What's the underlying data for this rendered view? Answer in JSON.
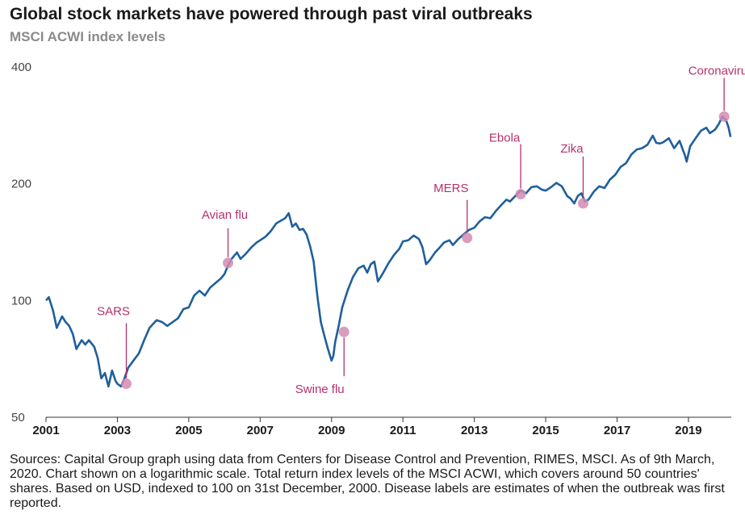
{
  "title": "Global stock markets have powered through past viral outbreaks",
  "subtitle": "MSCI ACWI index levels",
  "source": "Sources: Capital Group graph using data from Centers for Disease Control and Prevention, RIMES, MSCI. As of 9th March, 2020. Chart shown on a logarithmic scale. Total return index levels of the MSCI ACWI, which covers around 50 countries' shares. Based on USD, indexed to 100 on 31st December, 2000. Disease labels are estimates of when the outbreak was first reported.",
  "colors": {
    "line": "#1f5f9c",
    "annotation": "#b5306e",
    "marker": "#d48bb1"
  },
  "chart_data": {
    "type": "line",
    "title": "Global stock markets have powered through past viral outbreaks",
    "subtitle": "MSCI ACWI index levels",
    "y_scale": "log",
    "ylim": [
      50,
      400
    ],
    "yticks": [
      50,
      100,
      200,
      400
    ],
    "ytick_labels": [
      "50",
      "100",
      "200",
      "400"
    ],
    "xlim": [
      2001,
      2020.2
    ],
    "xticks": [
      2001,
      2003,
      2005,
      2007,
      2009,
      2011,
      2013,
      2015,
      2017,
      2019
    ],
    "xtick_labels": [
      "2001",
      "2003",
      "2005",
      "2007",
      "2009",
      "2011",
      "2013",
      "2015",
      "2017",
      "2019"
    ],
    "grid": false,
    "legend": "none",
    "series": [
      {
        "x": [
          2001.0,
          2001.08,
          2001.2,
          2001.3,
          2001.45,
          2001.55,
          2001.65,
          2001.75,
          2001.85,
          2002.0,
          2002.1,
          2002.2,
          2002.35,
          2002.45,
          2002.55,
          2002.65,
          2002.75,
          2002.85,
          2002.95,
          2003.0,
          2003.1,
          2003.2,
          2003.3,
          2003.45,
          2003.6,
          2003.75,
          2003.9,
          2004.0,
          2004.1,
          2004.25,
          2004.4,
          2004.55,
          2004.7,
          2004.85,
          2005.0,
          2005.15,
          2005.3,
          2005.45,
          2005.6,
          2005.75,
          2005.9,
          2006.0,
          2006.1,
          2006.2,
          2006.35,
          2006.45,
          2006.6,
          2006.75,
          2006.9,
          2007.0,
          2007.15,
          2007.3,
          2007.45,
          2007.55,
          2007.7,
          2007.8,
          2007.9,
          2008.0,
          2008.1,
          2008.2,
          2008.3,
          2008.4,
          2008.5,
          2008.6,
          2008.7,
          2008.8,
          2008.9,
          2009.0,
          2009.05,
          2009.1,
          2009.2,
          2009.3,
          2009.45,
          2009.6,
          2009.75,
          2009.9,
          2010.0,
          2010.1,
          2010.2,
          2010.3,
          2010.45,
          2010.6,
          2010.75,
          2010.9,
          2011.0,
          2011.15,
          2011.3,
          2011.45,
          2011.55,
          2011.65,
          2011.75,
          2011.9,
          2012.0,
          2012.15,
          2012.3,
          2012.4,
          2012.55,
          2012.7,
          2012.85,
          2013.0,
          2013.15,
          2013.3,
          2013.45,
          2013.6,
          2013.75,
          2013.9,
          2014.0,
          2014.15,
          2014.3,
          2014.45,
          2014.6,
          2014.75,
          2014.9,
          2015.0,
          2015.15,
          2015.3,
          2015.45,
          2015.6,
          2015.7,
          2015.8,
          2015.9,
          2016.0,
          2016.1,
          2016.2,
          2016.35,
          2016.5,
          2016.65,
          2016.8,
          2016.95,
          2017.1,
          2017.25,
          2017.4,
          2017.55,
          2017.7,
          2017.85,
          2018.0,
          2018.1,
          2018.2,
          2018.3,
          2018.45,
          2018.6,
          2018.75,
          2018.9,
          2018.95,
          2019.05,
          2019.2,
          2019.35,
          2019.5,
          2019.6,
          2019.75,
          2019.85,
          2019.95,
          2020.05,
          2020.12,
          2020.18
        ],
        "y": [
          100,
          102,
          94,
          85,
          91,
          88,
          86,
          82,
          75,
          79,
          77,
          79,
          76,
          71,
          63,
          65,
          60,
          66,
          62,
          61,
          60,
          63,
          67,
          70,
          73,
          79,
          85,
          87,
          89,
          88,
          86,
          88,
          90,
          95,
          96,
          103,
          106,
          103,
          108,
          111,
          114,
          117,
          123,
          128,
          133,
          128,
          132,
          137,
          141,
          143,
          146,
          151,
          158,
          160,
          163,
          168,
          155,
          158,
          152,
          153,
          148,
          138,
          126,
          103,
          88,
          81,
          75,
          70,
          72,
          78,
          86,
          96,
          106,
          115,
          121,
          123,
          118,
          124,
          126,
          112,
          118,
          125,
          131,
          136,
          142,
          143,
          147,
          144,
          137,
          124,
          127,
          133,
          136,
          141,
          143,
          139,
          144,
          148,
          152,
          154,
          160,
          164,
          163,
          170,
          176,
          182,
          180,
          186,
          192,
          189,
          196,
          197,
          193,
          192,
          196,
          201,
          197,
          186,
          183,
          178,
          186,
          189,
          180,
          182,
          191,
          197,
          195,
          205,
          211,
          221,
          226,
          238,
          245,
          247,
          252,
          266,
          255,
          254,
          256,
          262,
          247,
          258,
          237,
          228,
          250,
          262,
          274,
          279,
          270,
          276,
          285,
          298,
          292,
          280,
          264
        ]
      }
    ],
    "annotations": [
      {
        "label": "SARS",
        "x": 2003.25,
        "y": 61
      },
      {
        "label": "Avian flu",
        "x": 2006.1,
        "y": 125
      },
      {
        "label": "Swine flu",
        "x": 2009.35,
        "y": 83
      },
      {
        "label": "MERS",
        "x": 2012.8,
        "y": 145
      },
      {
        "label": "Ebola",
        "x": 2014.3,
        "y": 188
      },
      {
        "label": "Zika",
        "x": 2016.05,
        "y": 178
      },
      {
        "label": "Coronavirus",
        "x": 2020.0,
        "y": 298
      }
    ]
  }
}
